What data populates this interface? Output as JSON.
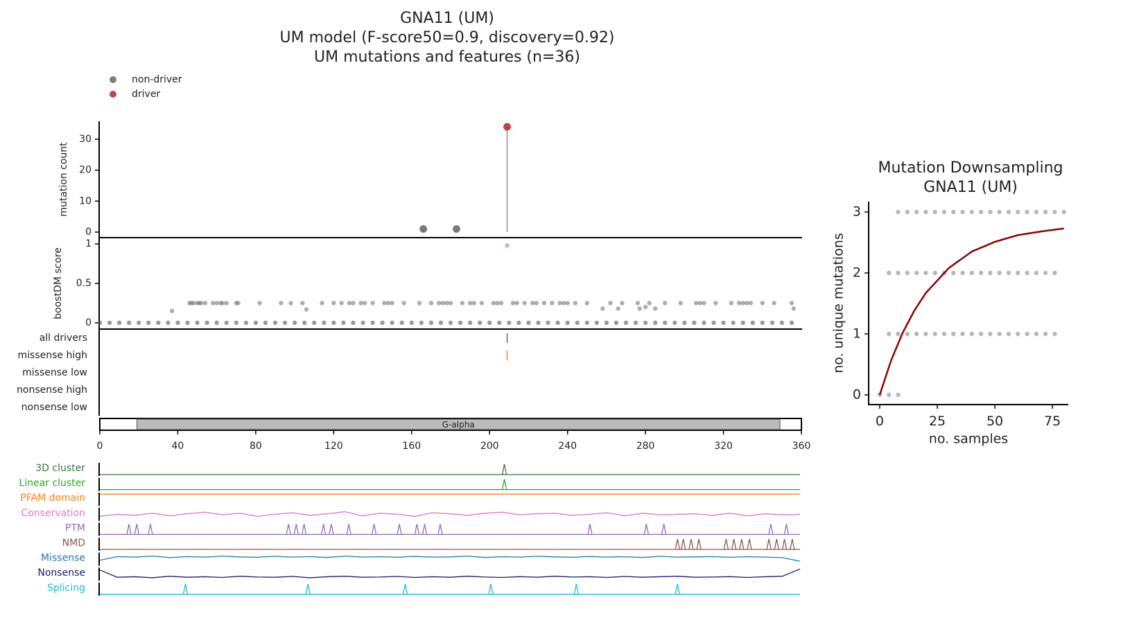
{
  "chart_data": [
    {
      "type": "lollipop",
      "title": [
        "GNA11 (UM)",
        "UM model (F-score50=0.9, discovery=0.92)",
        "UM mutations and features (n=36)"
      ],
      "ylabel": "mutation count",
      "ylim": [
        -1.8,
        35.8
      ],
      "yticks": [
        0,
        10,
        20,
        30
      ],
      "xlim": [
        0,
        360
      ],
      "legend": "upper left",
      "series": [
        {
          "name": "non-driver",
          "color": "#666666",
          "x": [
            166,
            183
          ],
          "values": [
            1,
            1
          ]
        },
        {
          "name": "driver",
          "color": "#b5262e",
          "x": [
            209
          ],
          "values": [
            34
          ]
        }
      ]
    },
    {
      "type": "scatter",
      "ylabel": "boostDM score",
      "ylim": [
        -0.08,
        1.08
      ],
      "yticks": [
        0,
        0.5,
        1
      ],
      "xlim": [
        0,
        360
      ],
      "series": [
        {
          "color": "#555555",
          "x": [
            0,
            5,
            10,
            15,
            20,
            25,
            30,
            35,
            40,
            45,
            50,
            55,
            60,
            65,
            70,
            75,
            80,
            85,
            90,
            95,
            100,
            105,
            110,
            115,
            120,
            125,
            130,
            135,
            140,
            145,
            150,
            155,
            160,
            165,
            170,
            175,
            180,
            185,
            190,
            195,
            200,
            205,
            210,
            215,
            220,
            225,
            230,
            235,
            240,
            245,
            250,
            255,
            260,
            265,
            270,
            275,
            280,
            285,
            290,
            295,
            300,
            305,
            310,
            315,
            320,
            325,
            330,
            335,
            340,
            345,
            350,
            355
          ],
          "values": [
            0,
            0,
            0,
            0,
            0,
            0,
            0,
            0,
            0,
            0,
            0,
            0,
            0,
            0,
            0,
            0,
            0,
            0,
            0,
            0,
            0,
            0,
            0,
            0,
            0,
            0,
            0,
            0,
            0,
            0,
            0,
            0,
            0,
            0,
            0,
            0,
            0,
            0,
            0,
            0,
            0,
            0,
            0,
            0,
            0,
            0,
            0,
            0,
            0,
            0,
            0,
            0,
            0,
            0,
            0,
            0,
            0,
            0,
            0,
            0,
            0,
            0,
            0,
            0,
            0,
            0,
            0,
            0,
            0,
            0,
            0,
            0
          ]
        },
        {
          "color": "#777777",
          "x": [
            37,
            46,
            47,
            48,
            50,
            51,
            52,
            54,
            58,
            60,
            62,
            63,
            65,
            70,
            71,
            82,
            93,
            98,
            104,
            106,
            114,
            120,
            124,
            128,
            130,
            134,
            136,
            140,
            146,
            148,
            150,
            156,
            164,
            170,
            174,
            176,
            178,
            180,
            186,
            190,
            192,
            196,
            202,
            204,
            206,
            212,
            214,
            218,
            222,
            224,
            228,
            232,
            236,
            238,
            240,
            244,
            250,
            258,
            262,
            266,
            268,
            276,
            277,
            280,
            282,
            285,
            290,
            298,
            306,
            308,
            310,
            316,
            324,
            328,
            330,
            332,
            334,
            340,
            346,
            355,
            356
          ],
          "values": [
            0.15,
            0.25,
            0.25,
            0.25,
            0.25,
            0.25,
            0.25,
            0.25,
            0.25,
            0.25,
            0.25,
            0.25,
            0.25,
            0.25,
            0.25,
            0.25,
            0.25,
            0.25,
            0.25,
            0.17,
            0.25,
            0.25,
            0.25,
            0.25,
            0.25,
            0.25,
            0.25,
            0.25,
            0.25,
            0.25,
            0.25,
            0.25,
            0.25,
            0.25,
            0.25,
            0.25,
            0.25,
            0.25,
            0.25,
            0.25,
            0.25,
            0.25,
            0.25,
            0.25,
            0.25,
            0.25,
            0.25,
            0.25,
            0.25,
            0.25,
            0.25,
            0.25,
            0.25,
            0.25,
            0.25,
            0.25,
            0.25,
            0.18,
            0.25,
            0.18,
            0.25,
            0.25,
            0.18,
            0.2,
            0.25,
            0.18,
            0.25,
            0.25,
            0.25,
            0.25,
            0.25,
            0.25,
            0.25,
            0.25,
            0.25,
            0.25,
            0.25,
            0.25,
            0.25,
            0.25,
            0.18
          ]
        },
        {
          "color": "#c97070",
          "x": [
            209
          ],
          "values": [
            0.98
          ]
        }
      ]
    },
    {
      "type": "strip",
      "xlim": [
        0,
        360
      ],
      "categories": [
        "all drivers",
        "missense high",
        "missense low",
        "nonsense high",
        "nonsense low"
      ],
      "colors": [
        "#8c564b",
        "#ff7f0e",
        "#1f77b4",
        "#d62728",
        "#9467bd"
      ],
      "values": [
        [
          209
        ],
        [
          209
        ],
        [],
        [],
        []
      ]
    },
    {
      "type": "domain",
      "xlim": [
        0,
        360
      ],
      "xticks": [
        0,
        40,
        80,
        120,
        160,
        200,
        240,
        280,
        320,
        360
      ],
      "color": "#bbbbbb",
      "domains": [
        {
          "label": "G-alpha",
          "start": 19,
          "end": 349
        }
      ]
    },
    {
      "type": "tracks",
      "xlim": [
        0,
        360
      ],
      "tracks": [
        {
          "name": "3D cluster",
          "color": "#3f6f3f",
          "peaks": [
            208
          ]
        },
        {
          "name": "Linear cluster",
          "color": "#2ca02c",
          "peaks": [
            208
          ]
        },
        {
          "name": "PFAM domain",
          "color": "#ff7f0e",
          "x": [
            0,
            360
          ],
          "values": [
            1,
            1
          ]
        },
        {
          "name": "Conservation",
          "color": "#e377c2",
          "x": [
            0,
            9,
            18,
            27,
            36,
            45,
            54,
            63,
            72,
            81,
            90,
            99,
            108,
            117,
            126,
            135,
            144,
            153,
            162,
            171,
            180,
            189,
            198,
            207,
            216,
            225,
            234,
            243,
            252,
            261,
            270,
            279,
            288,
            297,
            306,
            315,
            324,
            333,
            342,
            351,
            360
          ],
          "values": [
            0.3,
            0.5,
            0.4,
            0.6,
            0.35,
            0.55,
            0.7,
            0.45,
            0.6,
            0.3,
            0.5,
            0.65,
            0.4,
            0.55,
            0.75,
            0.35,
            0.6,
            0.5,
            0.3,
            0.65,
            0.55,
            0.4,
            0.6,
            0.7,
            0.45,
            0.55,
            0.6,
            0.4,
            0.5,
            0.65,
            0.35,
            0.6,
            0.45,
            0.5,
            0.55,
            0.4,
            0.6,
            0.35,
            0.55,
            0.45,
            0.5
          ]
        },
        {
          "name": "PTM",
          "color": "#9467bd",
          "peaks": [
            15,
            19,
            26,
            97,
            101,
            105,
            115,
            119,
            128,
            141,
            154,
            163,
            167,
            175,
            252,
            281,
            290,
            345,
            353
          ]
        },
        {
          "name": "NMD",
          "color": "#8c564b",
          "peaks": [
            297,
            300,
            304,
            308,
            322,
            326,
            330,
            334,
            344,
            348,
            352,
            356
          ]
        },
        {
          "name": "Missense",
          "color": "#1f77b4",
          "x": [
            0,
            9,
            18,
            27,
            36,
            45,
            54,
            63,
            72,
            81,
            90,
            99,
            108,
            117,
            126,
            135,
            144,
            153,
            162,
            171,
            180,
            189,
            198,
            207,
            216,
            225,
            234,
            243,
            252,
            261,
            270,
            279,
            288,
            297,
            306,
            315,
            324,
            333,
            342,
            351,
            360
          ],
          "values": [
            0.4,
            0.75,
            0.7,
            0.8,
            0.65,
            0.75,
            0.7,
            0.8,
            0.72,
            0.68,
            0.78,
            0.7,
            0.75,
            0.66,
            0.8,
            0.7,
            0.74,
            0.68,
            0.77,
            0.7,
            0.72,
            0.8,
            0.66,
            0.74,
            0.7,
            0.78,
            0.72,
            0.68,
            0.76,
            0.7,
            0.74,
            0.66,
            0.78,
            0.7,
            0.72,
            0.75,
            0.68,
            0.74,
            0.7,
            0.65,
            0.3
          ]
        },
        {
          "name": "Nonsense",
          "color": "#1a1a6e",
          "x": [
            0,
            9,
            18,
            27,
            36,
            45,
            54,
            63,
            72,
            81,
            90,
            99,
            108,
            117,
            126,
            135,
            144,
            153,
            162,
            171,
            180,
            189,
            198,
            207,
            216,
            225,
            234,
            243,
            252,
            261,
            270,
            279,
            288,
            297,
            306,
            315,
            324,
            333,
            342,
            351,
            360
          ],
          "values": [
            0.9,
            0.2,
            0.25,
            0.15,
            0.3,
            0.2,
            0.25,
            0.18,
            0.3,
            0.22,
            0.2,
            0.28,
            0.15,
            0.25,
            0.3,
            0.2,
            0.22,
            0.28,
            0.18,
            0.25,
            0.2,
            0.3,
            0.22,
            0.18,
            0.26,
            0.2,
            0.3,
            0.22,
            0.25,
            0.18,
            0.28,
            0.2,
            0.25,
            0.3,
            0.2,
            0.22,
            0.26,
            0.18,
            0.25,
            0.3,
            1
          ]
        },
        {
          "name": "Splicing",
          "color": "#17becf",
          "peaks": [
            44,
            107,
            157,
            201,
            245,
            297
          ]
        }
      ]
    },
    {
      "type": "scatter",
      "title": [
        "Mutation Downsampling",
        "GNA11 (UM)"
      ],
      "xlabel": "no. samples",
      "ylabel": "no. unique mutations",
      "xlim": [
        -4.5,
        81.6
      ],
      "xticks": [
        0,
        25,
        50,
        75
      ],
      "ylim": [
        -0.16,
        3.17
      ],
      "yticks": [
        0,
        1,
        2,
        3
      ],
      "series": [
        {
          "color": "#888888",
          "x": [
            0,
            4,
            8
          ],
          "values": [
            0,
            0,
            0
          ]
        },
        {
          "color": "#888888",
          "x": [
            4,
            8,
            12,
            16,
            20,
            24,
            28,
            32,
            36,
            40,
            44,
            48,
            52,
            56,
            60,
            64,
            68,
            72,
            76
          ],
          "values": [
            1,
            1,
            1,
            1,
            1,
            1,
            1,
            1,
            1,
            1,
            1,
            1,
            1,
            1,
            1,
            1,
            1,
            1,
            1
          ]
        },
        {
          "color": "#888888",
          "x": [
            4,
            8,
            12,
            16,
            20,
            24,
            28,
            32,
            36,
            40,
            44,
            48,
            52,
            56,
            60,
            64,
            68,
            72,
            76
          ],
          "values": [
            2,
            2,
            2,
            2,
            2,
            2,
            2,
            2,
            2,
            2,
            2,
            2,
            2,
            2,
            2,
            2,
            2,
            2,
            2
          ]
        },
        {
          "color": "#888888",
          "x": [
            8,
            12,
            16,
            20,
            24,
            28,
            32,
            36,
            40,
            44,
            48,
            52,
            56,
            60,
            64,
            68,
            72,
            76,
            80
          ],
          "values": [
            3,
            3,
            3,
            3,
            3,
            3,
            3,
            3,
            3,
            3,
            3,
            3,
            3,
            3,
            3,
            3,
            3,
            3,
            3
          ]
        }
      ],
      "fit": {
        "color": "#8b0000",
        "x": [
          0,
          5,
          10,
          15,
          20,
          30,
          40,
          50,
          60,
          70,
          80
        ],
        "values": [
          0,
          0.57,
          1.02,
          1.38,
          1.67,
          2.08,
          2.35,
          2.51,
          2.62,
          2.68,
          2.73
        ]
      }
    }
  ]
}
